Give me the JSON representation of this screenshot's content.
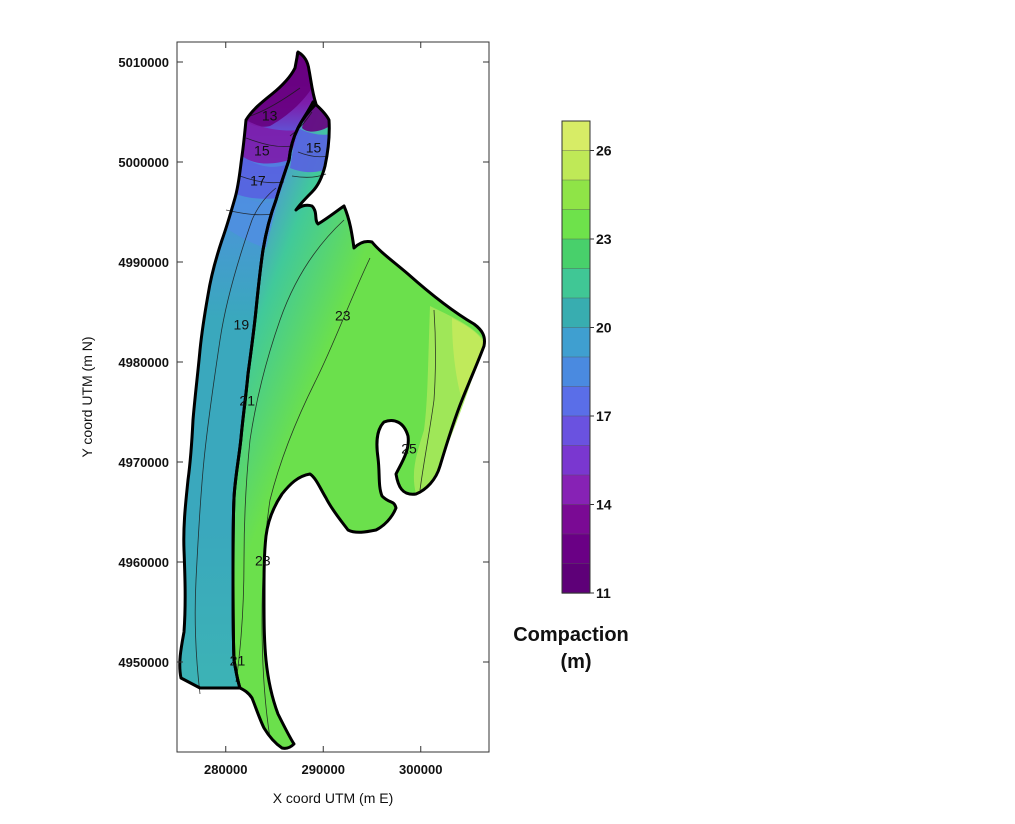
{
  "chart_data": {
    "type": "contour-map",
    "xlabel": "X coord UTM (m E)",
    "ylabel": "Y coord UTM (m N)",
    "xlim": [
      275000,
      307000
    ],
    "ylim": [
      4941000,
      5012000
    ],
    "x_ticks": [
      280000,
      290000,
      300000
    ],
    "y_ticks": [
      4950000,
      4960000,
      4970000,
      4980000,
      4990000,
      5000000,
      5010000
    ],
    "contour_labels": [
      {
        "text": "13",
        "x": 284500,
        "y": 5004500
      },
      {
        "text": "15",
        "x": 283700,
        "y": 5001000
      },
      {
        "text": "15",
        "x": 289000,
        "y": 5001300
      },
      {
        "text": "17",
        "x": 283300,
        "y": 4998000
      },
      {
        "text": "19",
        "x": 281600,
        "y": 4983600
      },
      {
        "text": "21",
        "x": 282200,
        "y": 4976000
      },
      {
        "text": "23",
        "x": 292000,
        "y": 4984500
      },
      {
        "text": "25",
        "x": 298800,
        "y": 4971200
      },
      {
        "text": "23",
        "x": 283800,
        "y": 4960000
      },
      {
        "text": "21",
        "x": 281200,
        "y": 4950000
      }
    ],
    "legend": {
      "title_line1": "Compaction",
      "title_line2": "(m)",
      "min": 11,
      "max": 27,
      "tick_values": [
        "26",
        "23",
        "20",
        "17",
        "14",
        "11"
      ],
      "colors": [
        "#d7ec66",
        "#bfe957",
        "#8fe447",
        "#6ee24b",
        "#48d06b",
        "#40c795",
        "#38adb0",
        "#3f9fd0",
        "#4a8ae0",
        "#5a6ee8",
        "#6a52e0",
        "#7a37d0",
        "#8722b5",
        "#7a0a94",
        "#6a0085",
        "#5e0078"
      ]
    },
    "color_ramp": {
      "11": "#680080",
      "13": "#7d1dab",
      "15": "#5862e0",
      "17": "#4f8fe0",
      "19": "#3aa8bd",
      "21": "#41c99a",
      "23": "#6be04c",
      "25": "#a5e85a",
      "26": "#c3ea5c"
    }
  }
}
